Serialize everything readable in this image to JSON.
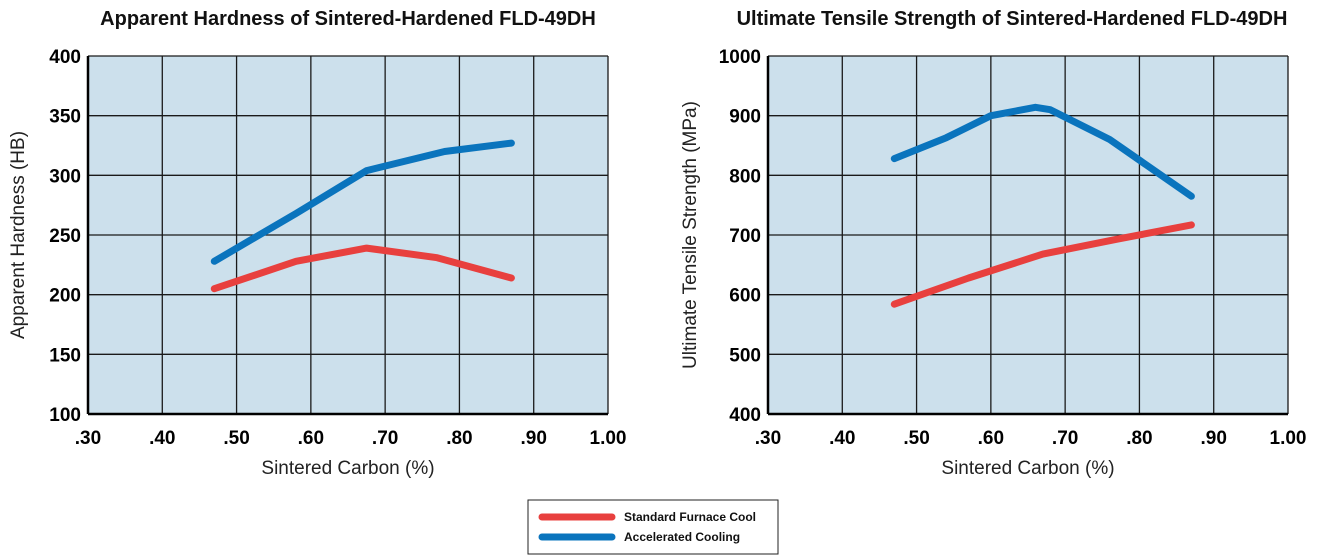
{
  "colors": {
    "plot_bg": "#cce0ec",
    "grid": "#1a1a1a",
    "standard": "#e8403e",
    "accelerated": "#0a74bd"
  },
  "legend": {
    "items": [
      {
        "label": "Standard Furnace Cool",
        "color": "#e8403e"
      },
      {
        "label": "Accelerated Cooling",
        "color": "#0a74bd"
      }
    ]
  },
  "chart_data": [
    {
      "type": "line",
      "title": "Apparent Hardness of Sintered-Hardened FLD-49DH",
      "xlabel": "Sintered Carbon (%)",
      "ylabel": "Apparent Hardness  (HB)",
      "xlim": [
        0.3,
        1.0
      ],
      "ylim": [
        100,
        400
      ],
      "x_ticks": [
        0.3,
        0.4,
        0.5,
        0.6,
        0.7,
        0.8,
        0.9,
        1.0
      ],
      "x_tick_labels": [
        ".30",
        ".40",
        ".50",
        ".60",
        ".70",
        ".80",
        ".90",
        "1.00"
      ],
      "y_ticks": [
        100,
        150,
        200,
        250,
        300,
        350,
        400
      ],
      "y_tick_labels": [
        "100",
        "150",
        "200",
        "250",
        "300",
        "350",
        "400"
      ],
      "grid": true,
      "series": [
        {
          "name": "Standard Furnace Cool",
          "color": "#e8403e",
          "x": [
            0.47,
            0.58,
            0.675,
            0.77,
            0.87
          ],
          "y": [
            205,
            228,
            239,
            231,
            214
          ]
        },
        {
          "name": "Accelerated Cooling",
          "color": "#0a74bd",
          "x": [
            0.47,
            0.58,
            0.675,
            0.78,
            0.87
          ],
          "y": [
            228,
            268,
            304,
            320,
            327
          ]
        }
      ]
    },
    {
      "type": "line",
      "title": "Ultimate Tensile Strength of Sintered-Hardened FLD-49DH",
      "xlabel": "Sintered Carbon (%)",
      "ylabel": "Ultimate Tensile Strength (MPa)",
      "xlim": [
        0.3,
        1.0
      ],
      "ylim": [
        400,
        1000
      ],
      "x_ticks": [
        0.3,
        0.4,
        0.5,
        0.6,
        0.7,
        0.8,
        0.9,
        1.0
      ],
      "x_tick_labels": [
        ".30",
        ".40",
        ".50",
        ".60",
        ".70",
        ".80",
        ".90",
        "1.00"
      ],
      "y_ticks": [
        400,
        500,
        600,
        700,
        800,
        900,
        1000
      ],
      "y_tick_labels": [
        "400",
        "500",
        "600",
        "700",
        "800",
        "900",
        "1000"
      ],
      "grid": true,
      "series": [
        {
          "name": "Standard Furnace Cool",
          "color": "#e8403e",
          "x": [
            0.47,
            0.57,
            0.67,
            0.77,
            0.87
          ],
          "y": [
            584,
            628,
            668,
            693,
            717
          ]
        },
        {
          "name": "Accelerated Cooling",
          "color": "#0a74bd",
          "x": [
            0.47,
            0.54,
            0.6,
            0.66,
            0.68,
            0.76,
            0.87
          ],
          "y": [
            828,
            863,
            900,
            914,
            910,
            860,
            765
          ]
        }
      ]
    }
  ]
}
